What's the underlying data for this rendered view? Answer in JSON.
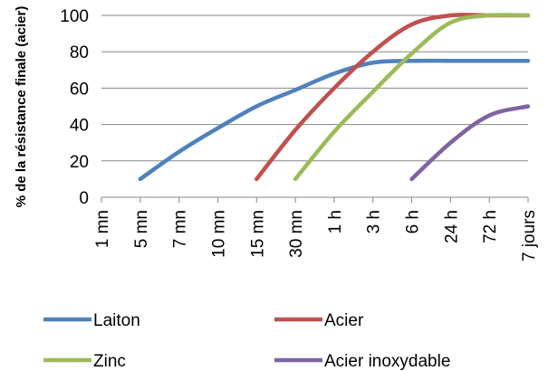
{
  "chart_data": {
    "type": "line",
    "title": "",
    "xlabel": "",
    "ylabel": "% de la résistance finale (acier)",
    "ylim": [
      0,
      100
    ],
    "yticks": [
      0,
      20,
      40,
      60,
      80,
      100
    ],
    "categories": [
      "1 mn",
      "5 mn",
      "7 mn",
      "10 mn",
      "15 mn",
      "30 mn",
      "1 h",
      "3 h",
      "6 h",
      "24 h",
      "72 h",
      "7 jours"
    ],
    "grid": "horizontal",
    "legend_position": "bottom",
    "series": [
      {
        "name": "Laiton",
        "color": "#4f81bd",
        "values": [
          null,
          10,
          25,
          38,
          50,
          59,
          68,
          74,
          75,
          75,
          75,
          75
        ]
      },
      {
        "name": "Acier",
        "color": "#c0504d",
        "values": [
          null,
          null,
          null,
          null,
          10,
          37,
          60,
          80,
          95,
          100,
          100,
          100
        ]
      },
      {
        "name": "Zinc",
        "color": "#9bbb59",
        "values": [
          null,
          null,
          null,
          null,
          null,
          10,
          36,
          58,
          79,
          96,
          100,
          100
        ]
      },
      {
        "name": "Acier inoxydable",
        "color": "#8064a2",
        "values": [
          null,
          null,
          null,
          null,
          null,
          null,
          null,
          null,
          10,
          30,
          45,
          50
        ]
      }
    ]
  }
}
